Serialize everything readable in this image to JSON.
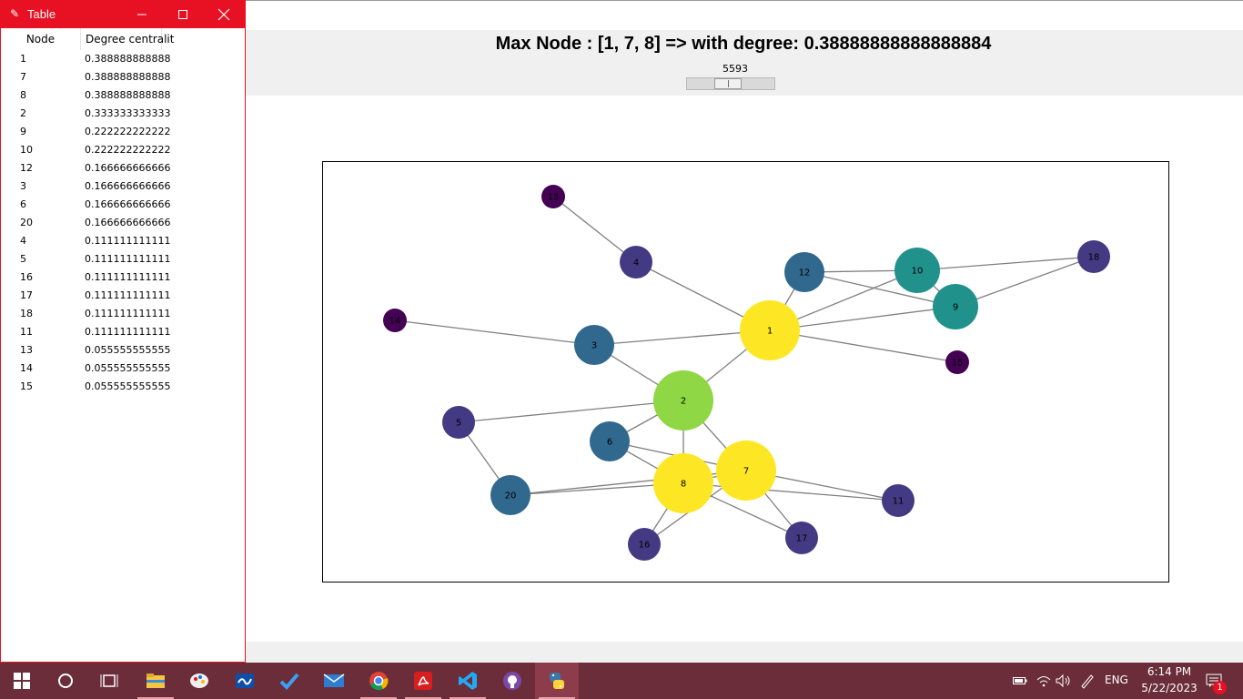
{
  "main": {
    "title": "Max Node : [1, 7, 8] => with degree: 0.38888888888888884",
    "slider_value": "5593",
    "slider_fraction": 0.45
  },
  "graph": {
    "nodes": [
      {
        "id": "1",
        "color": "#fde725",
        "size": "large"
      },
      {
        "id": "2",
        "color": "#8fd744",
        "size": "large"
      },
      {
        "id": "3",
        "color": "#31688e",
        "size": "medium"
      },
      {
        "id": "4",
        "color": "#443983",
        "size": "small"
      },
      {
        "id": "5",
        "color": "#443983",
        "size": "small"
      },
      {
        "id": "6",
        "color": "#31688e",
        "size": "medium"
      },
      {
        "id": "7",
        "color": "#fde725",
        "size": "large"
      },
      {
        "id": "8",
        "color": "#fde725",
        "size": "large"
      },
      {
        "id": "9",
        "color": "#21918c",
        "size": "medium-large"
      },
      {
        "id": "10",
        "color": "#21918c",
        "size": "medium-large"
      },
      {
        "id": "11",
        "color": "#443983",
        "size": "small"
      },
      {
        "id": "12",
        "color": "#31688e",
        "size": "medium"
      },
      {
        "id": "13",
        "color": "#440154",
        "size": "tiny"
      },
      {
        "id": "14",
        "color": "#440154",
        "size": "tiny"
      },
      {
        "id": "15",
        "color": "#440154",
        "size": "tiny"
      },
      {
        "id": "16",
        "color": "#443983",
        "size": "small"
      },
      {
        "id": "17",
        "color": "#443983",
        "size": "small"
      },
      {
        "id": "18",
        "color": "#443983",
        "size": "small"
      },
      {
        "id": "20",
        "color": "#31688e",
        "size": "medium"
      }
    ],
    "edges": [
      [
        "13",
        "4"
      ],
      [
        "4",
        "1"
      ],
      [
        "14",
        "3"
      ],
      [
        "3",
        "1"
      ],
      [
        "3",
        "2"
      ],
      [
        "1",
        "2"
      ],
      [
        "1",
        "12"
      ],
      [
        "1",
        "10"
      ],
      [
        "1",
        "9"
      ],
      [
        "1",
        "15"
      ],
      [
        "12",
        "10"
      ],
      [
        "12",
        "9"
      ],
      [
        "10",
        "9"
      ],
      [
        "10",
        "18"
      ],
      [
        "9",
        "18"
      ],
      [
        "2",
        "5"
      ],
      [
        "2",
        "6"
      ],
      [
        "2",
        "8"
      ],
      [
        "2",
        "7"
      ],
      [
        "5",
        "20"
      ],
      [
        "6",
        "8"
      ],
      [
        "6",
        "7"
      ],
      [
        "20",
        "8"
      ],
      [
        "20",
        "7"
      ],
      [
        "8",
        "7"
      ],
      [
        "8",
        "16"
      ],
      [
        "8",
        "17"
      ],
      [
        "8",
        "11"
      ],
      [
        "7",
        "16"
      ],
      [
        "7",
        "17"
      ],
      [
        "7",
        "11"
      ]
    ]
  },
  "table_window": {
    "title": "Table",
    "columns": [
      "Node",
      "Degree centralit"
    ],
    "rows": [
      {
        "node": "1",
        "degree": "0.388888888888"
      },
      {
        "node": "7",
        "degree": "0.388888888888"
      },
      {
        "node": "8",
        "degree": "0.388888888888"
      },
      {
        "node": "2",
        "degree": "0.333333333333"
      },
      {
        "node": "9",
        "degree": "0.222222222222"
      },
      {
        "node": "10",
        "degree": "0.222222222222"
      },
      {
        "node": "12",
        "degree": "0.166666666666"
      },
      {
        "node": "3",
        "degree": "0.166666666666"
      },
      {
        "node": "6",
        "degree": "0.166666666666"
      },
      {
        "node": "20",
        "degree": "0.166666666666"
      },
      {
        "node": "4",
        "degree": "0.111111111111"
      },
      {
        "node": "5",
        "degree": "0.111111111111"
      },
      {
        "node": "16",
        "degree": "0.111111111111"
      },
      {
        "node": "17",
        "degree": "0.111111111111"
      },
      {
        "node": "18",
        "degree": "0.111111111111"
      },
      {
        "node": "11",
        "degree": "0.111111111111"
      },
      {
        "node": "13",
        "degree": "0.055555555555"
      },
      {
        "node": "14",
        "degree": "0.055555555555"
      },
      {
        "node": "15",
        "degree": "0.055555555555"
      }
    ]
  },
  "taskbar": {
    "apps": [
      {
        "name": "start-icon"
      },
      {
        "name": "cortana-icon"
      },
      {
        "name": "task-view-icon"
      },
      {
        "name": "file-explorer-icon"
      },
      {
        "name": "paint-icon"
      },
      {
        "name": "whiteboard-icon"
      },
      {
        "name": "todo-icon"
      },
      {
        "name": "mail-icon"
      },
      {
        "name": "chrome-icon"
      },
      {
        "name": "acrobat-icon"
      },
      {
        "name": "vscode-icon"
      },
      {
        "name": "github-icon"
      },
      {
        "name": "python-icon"
      }
    ],
    "language": "ENG",
    "time": "6:14 PM",
    "date": "5/22/2023",
    "notification_count": "1"
  }
}
